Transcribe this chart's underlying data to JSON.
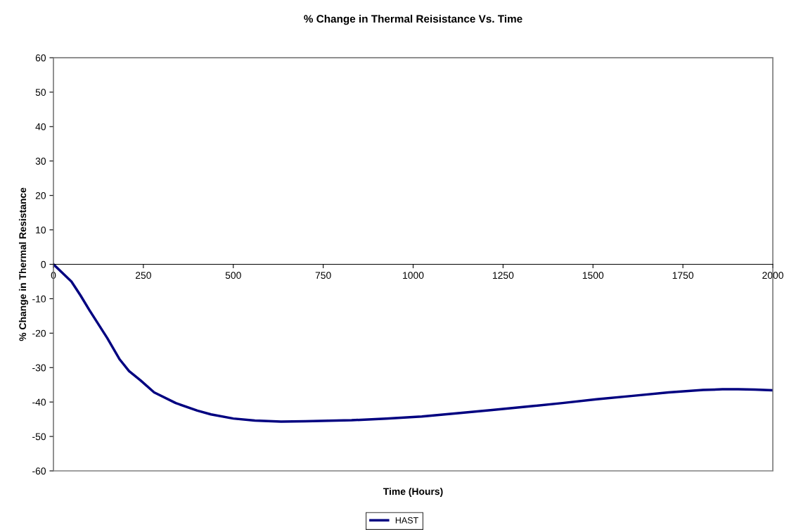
{
  "chart_data": {
    "type": "line",
    "title": "% Change in Thermal Reisistance Vs. Time",
    "xlabel": "Time (Hours)",
    "ylabel": "% Change in Thermal Resistance",
    "x": [
      0,
      25,
      50,
      75,
      100,
      125,
      150,
      184,
      210,
      242,
      280,
      340,
      400,
      438,
      500,
      560,
      633,
      700,
      829,
      925,
      1024,
      1120,
      1220,
      1320,
      1415,
      1510,
      1611,
      1710,
      1806,
      1860,
      1904,
      1950,
      2000
    ],
    "series": [
      {
        "name": "HAST",
        "color": "#000080",
        "values": [
          0,
          -2.5,
          -5,
          -9,
          -13.3,
          -17.4,
          -21.5,
          -27.6,
          -31,
          -33.7,
          -37.2,
          -40.3,
          -42.5,
          -43.6,
          -44.8,
          -45.4,
          -45.7,
          -45.6,
          -45.3,
          -44.8,
          -44.2,
          -43.3,
          -42.3,
          -41.3,
          -40.3,
          -39.2,
          -38.2,
          -37.2,
          -36.5,
          -36.3,
          -36.3,
          -36.4,
          -36.6
        ]
      }
    ],
    "xlim": [
      0,
      2000
    ],
    "xticks": [
      0,
      250,
      500,
      750,
      1000,
      1250,
      1500,
      1750,
      2000
    ],
    "ylim": [
      -60,
      60
    ],
    "yticks": [
      -60,
      -50,
      -40,
      -30,
      -20,
      -10,
      0,
      10,
      20,
      30,
      40,
      50,
      60
    ],
    "grid": false,
    "legend": "bottom",
    "marker": "none",
    "line_style": "solid"
  }
}
